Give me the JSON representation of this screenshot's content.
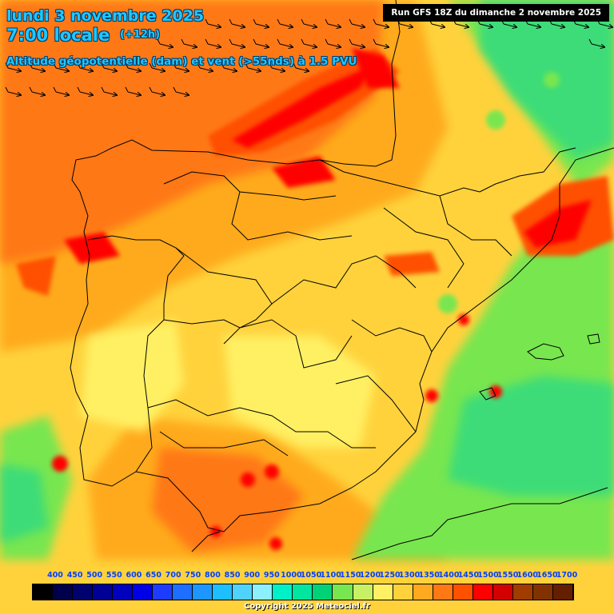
{
  "header": {
    "date": "lundi 3 novembre 2025",
    "time": "7:00 locale",
    "offset": "(+12h)",
    "subtitle": "Altitude géopotentielle (dam) et vent (>55nds) à 1.5 PVU"
  },
  "run_label": "Run GFS 18Z du dimanche 2 novembre 2025",
  "copyright": "Copyright 2025 Meteociel.fr",
  "legend": {
    "labels": [
      "400",
      "450",
      "500",
      "550",
      "600",
      "650",
      "700",
      "750",
      "800",
      "850",
      "900",
      "950",
      "1000",
      "1050",
      "1100",
      "1150",
      "1200",
      "1250",
      "1300",
      "1350",
      "1400",
      "1450",
      "1500",
      "1550",
      "1600",
      "1650",
      "1700"
    ],
    "colors": [
      "#000000",
      "#00004a",
      "#00006e",
      "#000096",
      "#0000be",
      "#0000e6",
      "#1e3cff",
      "#1e6eff",
      "#1e96ff",
      "#1ebeff",
      "#50d2ff",
      "#8cf0ff",
      "#00f0c8",
      "#00e6a0",
      "#00d278",
      "#78e650",
      "#c8f064",
      "#fff064",
      "#ffd23c",
      "#ffaa1e",
      "#ff7814",
      "#ff5000",
      "#ff0000",
      "#d20000",
      "#a03c00",
      "#823200",
      "#641e00"
    ]
  },
  "map_colors": {
    "ocean_green": "#3cdc78",
    "yellow": "#fff064",
    "orange": "#ffaa1e",
    "dark_orange": "#ff7814",
    "red_orange": "#ff5000",
    "red": "#ff0000",
    "borders": "#000000"
  },
  "wind_arrows": {
    "direction": "eastward",
    "region": "top-left and top-center"
  }
}
